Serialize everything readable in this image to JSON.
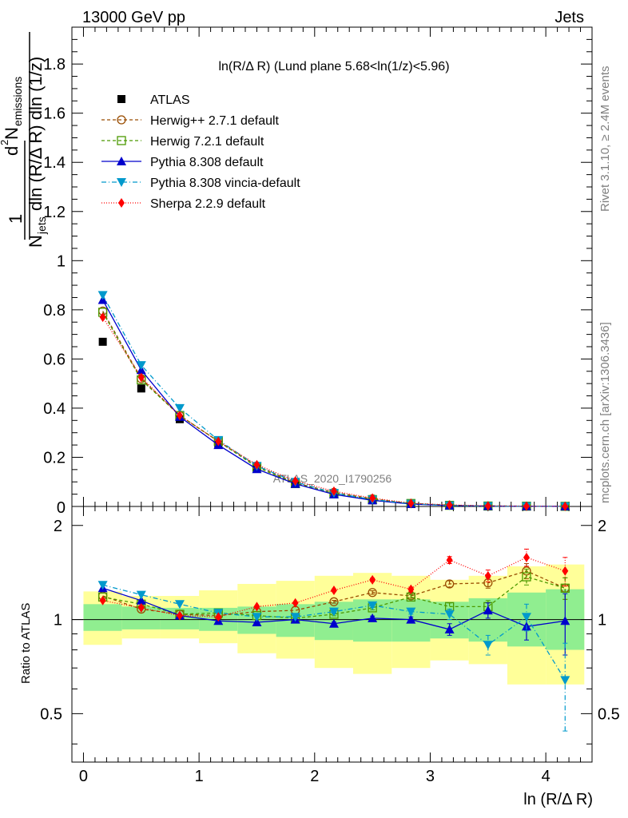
{
  "header": {
    "left": "13000 GeV pp",
    "right": "Jets"
  },
  "side_labels": {
    "top": "Rivet 3.1.10, ≥ 2.4M events",
    "bottom": "mcplots.cern.ch [arXiv:1306.3436]"
  },
  "watermark": "ATLAS_2020_I1790256",
  "chart_data": {
    "type": "scatter",
    "title": "ln(R/Δ R) (Lund plane 5.68<ln(1/z)<5.96)",
    "xlabel": "ln (R/Δ R)",
    "ylabel_upper": "1/N_jets d²N_emissions / dln(R/Δ R) dln(1/z)",
    "ylabel_lower": "Ratio to ATLAS",
    "xlim": [
      -0.1,
      4.4
    ],
    "ylim_upper": [
      0,
      1.95
    ],
    "ylim_lower": [
      0.35,
      2.3
    ],
    "x_ticks": [
      "0",
      "1",
      "2",
      "3",
      "4"
    ],
    "y_ticks_upper": [
      "0.2",
      "0.4",
      "0.6",
      "0.8",
      "1",
      "1.2",
      "1.4",
      "1.6",
      "1.8"
    ],
    "y_ticks_lower": [
      "0.5",
      "1",
      "2"
    ],
    "x": [
      0.167,
      0.5,
      0.833,
      1.167,
      1.5,
      1.833,
      2.167,
      2.5,
      2.833,
      3.167,
      3.5,
      3.833,
      4.167
    ],
    "bin_edges": [
      0,
      0.333,
      0.667,
      1.0,
      1.333,
      1.667,
      2.0,
      2.333,
      2.667,
      3.0,
      3.333,
      3.667,
      4.0,
      4.333
    ],
    "band_inner": [
      [
        0.92,
        1.12
      ],
      [
        0.93,
        1.1
      ],
      [
        0.93,
        1.09
      ],
      [
        0.92,
        1.09
      ],
      [
        0.9,
        1.1
      ],
      [
        0.88,
        1.12
      ],
      [
        0.86,
        1.14
      ],
      [
        0.85,
        1.16
      ],
      [
        0.85,
        1.16
      ],
      [
        0.87,
        1.14
      ],
      [
        0.85,
        1.17
      ],
      [
        0.82,
        1.22
      ],
      [
        0.8,
        1.25
      ]
    ],
    "band_outer": [
      [
        0.83,
        1.23
      ],
      [
        0.87,
        1.19
      ],
      [
        0.87,
        1.19
      ],
      [
        0.84,
        1.24
      ],
      [
        0.78,
        1.3
      ],
      [
        0.75,
        1.33
      ],
      [
        0.7,
        1.38
      ],
      [
        0.67,
        1.41
      ],
      [
        0.7,
        1.38
      ],
      [
        0.74,
        1.34
      ],
      [
        0.72,
        1.38
      ],
      [
        0.62,
        1.48
      ],
      [
        0.62,
        1.5
      ]
    ],
    "series": [
      {
        "name": "ATLAS",
        "color": "#000000",
        "marker": "square-filled",
        "dash": "",
        "values": [
          0.67,
          0.48,
          0.355,
          0.252,
          0.155,
          0.092,
          0.05,
          0.025,
          0.01,
          0.004,
          0.0015,
          0.0008,
          0.0004
        ],
        "ratio": [
          1,
          1,
          1,
          1,
          1,
          1,
          1,
          1,
          1,
          1,
          1,
          1,
          1
        ],
        "ratio_err": [
          0,
          0,
          0,
          0,
          0,
          0,
          0,
          0,
          0,
          0,
          0,
          0,
          0
        ]
      },
      {
        "name": "Herwig++ 2.7.1 default",
        "color": "#994c00",
        "marker": "circle-open",
        "dash": "4,3",
        "values": [
          0.795,
          0.52,
          0.37,
          0.265,
          0.165,
          0.096,
          0.057,
          0.031,
          0.012,
          0.0052,
          0.002,
          0.0011,
          0.0005
        ],
        "ratio": [
          1.19,
          1.08,
          1.04,
          1.03,
          1.06,
          1.07,
          1.14,
          1.22,
          1.19,
          1.3,
          1.31,
          1.43,
          1.26
        ],
        "ratio_err": [
          0.005,
          0.005,
          0.005,
          0.006,
          0.007,
          0.009,
          0.012,
          0.016,
          0.02,
          0.03,
          0.05,
          0.08,
          0.1
        ]
      },
      {
        "name": "Herwig 7.2.1 default",
        "color": "#4c9900",
        "marker": "square-open",
        "dash": "4,3",
        "values": [
          0.79,
          0.515,
          0.37,
          0.265,
          0.16,
          0.093,
          0.052,
          0.028,
          0.012,
          0.0045,
          0.0017,
          0.0011,
          0.0005
        ],
        "ratio": [
          1.18,
          1.12,
          1.04,
          1.05,
          1.03,
          1.01,
          1.04,
          1.09,
          1.18,
          1.1,
          1.1,
          1.37,
          1.26
        ],
        "ratio_err": [
          0.005,
          0.005,
          0.005,
          0.006,
          0.007,
          0.009,
          0.012,
          0.016,
          0.02,
          0.03,
          0.05,
          0.08,
          0.1
        ]
      },
      {
        "name": "Pythia 8.308 default",
        "color": "#0000cc",
        "marker": "triangle-up",
        "dash": "",
        "values": [
          0.84,
          0.555,
          0.365,
          0.25,
          0.152,
          0.092,
          0.049,
          0.025,
          0.01,
          0.0037,
          0.0016,
          0.0008,
          0.0004
        ],
        "ratio": [
          1.26,
          1.15,
          1.03,
          0.99,
          0.98,
          1.0,
          0.97,
          1.01,
          1.0,
          0.93,
          1.07,
          0.95,
          0.99
        ],
        "ratio_err": [
          0.005,
          0.005,
          0.005,
          0.006,
          0.007,
          0.009,
          0.012,
          0.016,
          0.02,
          0.04,
          0.06,
          0.09,
          0.22
        ]
      },
      {
        "name": "Pythia 8.308 vincia-default",
        "color": "#0099cc",
        "marker": "triangle-down",
        "dash": "6,3,1,3",
        "values": [
          0.86,
          0.575,
          0.4,
          0.27,
          0.165,
          0.1,
          0.055,
          0.028,
          0.011,
          0.0042,
          0.0012,
          0.0008,
          0.0003
        ],
        "ratio": [
          1.29,
          1.2,
          1.12,
          1.05,
          1.02,
          1.02,
          1.06,
          1.11,
          1.06,
          1.04,
          0.83,
          1.02,
          0.64
        ],
        "ratio_err": [
          0.005,
          0.005,
          0.005,
          0.006,
          0.007,
          0.009,
          0.012,
          0.016,
          0.02,
          0.04,
          0.06,
          0.1,
          0.2
        ]
      },
      {
        "name": "Sherpa 2.2.9 default",
        "color": "#ff0000",
        "marker": "diamond",
        "dash": "1,2",
        "values": [
          0.77,
          0.525,
          0.37,
          0.265,
          0.17,
          0.104,
          0.062,
          0.034,
          0.013,
          0.0062,
          0.0021,
          0.0012,
          0.0006
        ],
        "ratio": [
          1.15,
          1.09,
          1.03,
          1.02,
          1.1,
          1.13,
          1.24,
          1.34,
          1.25,
          1.55,
          1.38,
          1.58,
          1.43
        ],
        "ratio_err": [
          0.005,
          0.005,
          0.005,
          0.006,
          0.007,
          0.009,
          0.012,
          0.016,
          0.02,
          0.04,
          0.06,
          0.1,
          0.15
        ]
      }
    ]
  }
}
